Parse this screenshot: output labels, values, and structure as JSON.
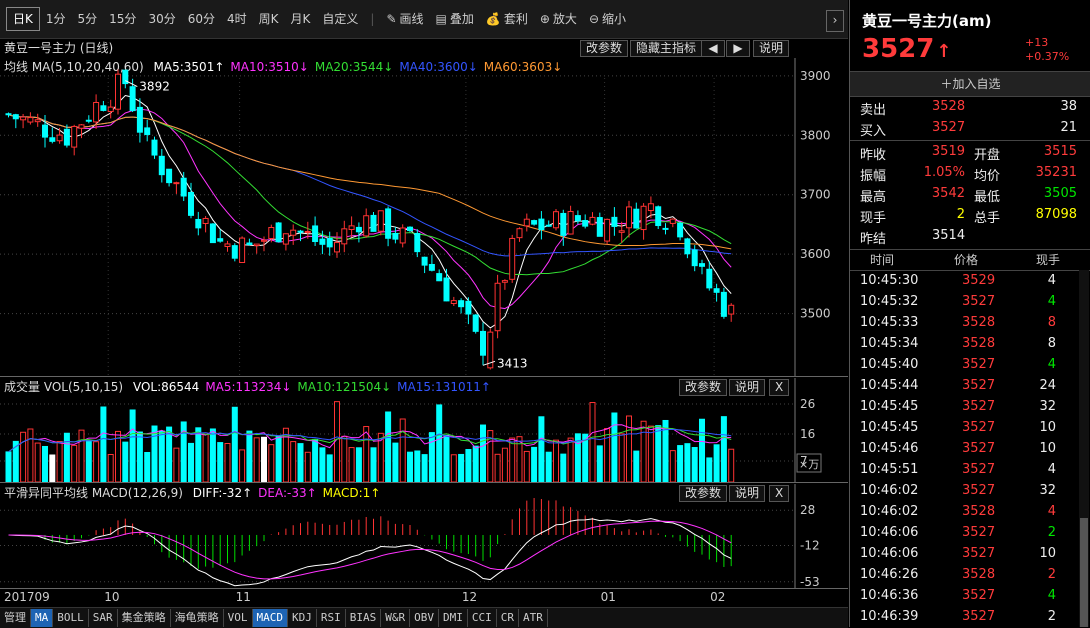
{
  "toolbar": {
    "periods": [
      "日K",
      "1分",
      "5分",
      "15分",
      "30分",
      "60分",
      "4时",
      "周K",
      "月K",
      "自定义"
    ],
    "active_period": "日K",
    "tools": [
      {
        "label": "画线",
        "icon": "pencil-icon"
      },
      {
        "label": "叠加",
        "icon": "stack-icon"
      },
      {
        "label": "套利",
        "icon": "moneybag-icon"
      },
      {
        "label": "放大",
        "icon": "zoom-in-icon"
      },
      {
        "label": "缩小",
        "icon": "zoom-out-icon"
      }
    ]
  },
  "main_chart": {
    "title": "黄豆一号主力 (日线)",
    "buttons": [
      "改参数",
      "隐藏主指标",
      "说明"
    ],
    "ma_label": "均线 MA(5,10,20,40,60)",
    "ma_values": [
      {
        "text": "MA5:3501↑",
        "color": "#ffffff"
      },
      {
        "text": "MA10:3510↓",
        "color": "#ff33ff"
      },
      {
        "text": "MA20:3544↓",
        "color": "#33dd33"
      },
      {
        "text": "MA40:3600↓",
        "color": "#3355ff"
      },
      {
        "text": "MA60:3603↓",
        "color": "#ff9933"
      }
    ],
    "price_ticks": [
      "3900",
      "3800",
      "3700",
      "3600",
      "3500"
    ],
    "annotations": [
      "3892",
      "3413"
    ]
  },
  "volume_chart": {
    "title": "成交量 VOL(5,10,15)",
    "values": [
      {
        "text": "VOL:86544",
        "color": "#ffffff"
      },
      {
        "text": "MA5:113234↓",
        "color": "#ff33ff"
      },
      {
        "text": "MA10:121504↓",
        "color": "#33dd33"
      },
      {
        "text": "MA15:131011↑",
        "color": "#3355ff"
      }
    ],
    "buttons": [
      "改参数",
      "说明",
      "X"
    ],
    "ticks": [
      "26",
      "16",
      "7"
    ],
    "unit": "×万"
  },
  "macd_chart": {
    "title": "平滑异同平均线 MACD(12,26,9)",
    "values": [
      {
        "text": "DIFF:-32↑",
        "color": "#ffffff"
      },
      {
        "text": "DEA:-33↑",
        "color": "#ff33ff"
      },
      {
        "text": "MACD:1↑",
        "color": "#ffff00"
      }
    ],
    "buttons": [
      "改参数",
      "说明",
      "X"
    ],
    "ticks": [
      "28",
      "-12",
      "-53"
    ]
  },
  "date_axis": [
    "201709",
    "10",
    "11",
    "12",
    "01",
    "02"
  ],
  "bottom_tabs": [
    "管理",
    "MA",
    "BOLL",
    "SAR",
    "集金策略",
    "海龟策略",
    "VOL",
    "MACD",
    "KDJ",
    "RSI",
    "BIAS",
    "W&R",
    "OBV",
    "DMI",
    "CCI",
    "CR",
    "ATR"
  ],
  "active_tabs": [
    "MA",
    "MACD"
  ],
  "quote": {
    "name": "黄豆一号主力(am)",
    "price": "3527",
    "arrow": "↑",
    "change": "+13",
    "change_pct": "+0.37%",
    "add_watch": "加入自选",
    "sell": {
      "label": "卖出",
      "price": "3528",
      "vol": "38"
    },
    "buy": {
      "label": "买入",
      "price": "3527",
      "vol": "21"
    },
    "stats": [
      [
        {
          "label": "昨收",
          "value": "3519",
          "color": "#ff3b3b"
        },
        {
          "label": "开盘",
          "value": "3515",
          "color": "#ff3b3b"
        }
      ],
      [
        {
          "label": "振幅",
          "value": "1.05%",
          "color": "#ff3b3b"
        },
        {
          "label": "均价",
          "value": "35231",
          "color": "#ff3b3b"
        }
      ],
      [
        {
          "label": "最高",
          "value": "3542",
          "color": "#ff3b3b"
        },
        {
          "label": "最低",
          "value": "3505",
          "color": "#00e600"
        }
      ],
      [
        {
          "label": "现手",
          "value": "2",
          "color": "#ffff00"
        },
        {
          "label": "总手",
          "value": "87098",
          "color": "#ffff00"
        }
      ],
      [
        {
          "label": "昨结",
          "value": "3514",
          "color": "#eeeeee"
        },
        {
          "label": "",
          "value": "",
          "color": "#eeeeee"
        }
      ]
    ],
    "ticks_header": [
      "时间",
      "价格",
      "现手"
    ],
    "ticks": [
      [
        "10:45:30",
        "3529",
        "4",
        "#eeeeee"
      ],
      [
        "10:45:32",
        "3527",
        "4",
        "#00e600"
      ],
      [
        "10:45:33",
        "3528",
        "8",
        "#ff3b3b"
      ],
      [
        "10:45:34",
        "3528",
        "8",
        "#eeeeee"
      ],
      [
        "10:45:40",
        "3527",
        "4",
        "#00e600"
      ],
      [
        "10:45:44",
        "3527",
        "24",
        "#eeeeee"
      ],
      [
        "10:45:45",
        "3527",
        "32",
        "#eeeeee"
      ],
      [
        "10:45:45",
        "3527",
        "10",
        "#eeeeee"
      ],
      [
        "10:45:46",
        "3527",
        "10",
        "#eeeeee"
      ],
      [
        "10:45:51",
        "3527",
        "4",
        "#eeeeee"
      ],
      [
        "10:46:02",
        "3527",
        "32",
        "#eeeeee"
      ],
      [
        "10:46:02",
        "3528",
        "4",
        "#ff3b3b"
      ],
      [
        "10:46:06",
        "3527",
        "2",
        "#00e600"
      ],
      [
        "10:46:06",
        "3527",
        "10",
        "#eeeeee"
      ],
      [
        "10:46:26",
        "3528",
        "2",
        "#ff3b3b"
      ],
      [
        "10:46:36",
        "3527",
        "4",
        "#00e600"
      ],
      [
        "10:46:39",
        "3527",
        "2",
        "#eeeeee"
      ]
    ]
  }
}
